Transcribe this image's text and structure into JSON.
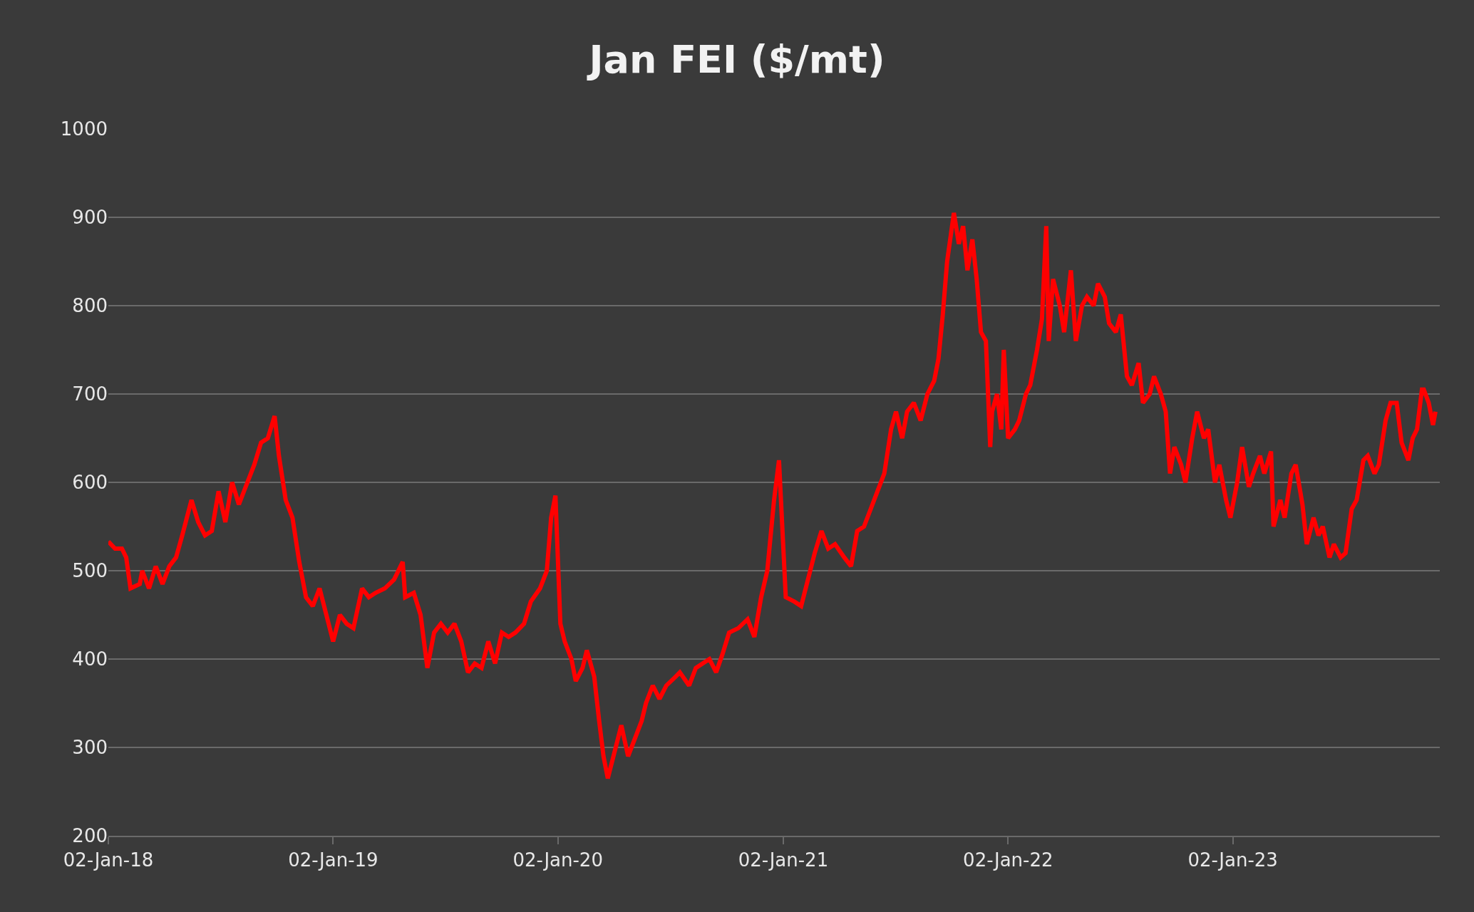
{
  "chart_data": {
    "type": "line",
    "title": "Jan FEI ($/mt)",
    "x": [
      "2018-01-02",
      "2018-01-13",
      "2018-01-24",
      "2018-01-31",
      "2018-02-07",
      "2018-02-22",
      "2018-02-26",
      "2018-03-09",
      "2018-03-20",
      "2018-03-31",
      "2018-04-11",
      "2018-04-22",
      "2018-05-02",
      "2018-05-17",
      "2018-05-28",
      "2018-06-08",
      "2018-06-19",
      "2018-06-30",
      "2018-07-11",
      "2018-07-22",
      "2018-08-02",
      "2018-08-13",
      "2018-08-27",
      "2018-09-07",
      "2018-09-18",
      "2018-09-29",
      "2018-10-06",
      "2018-10-17",
      "2018-10-28",
      "2018-11-08",
      "2018-11-19",
      "2018-11-30",
      "2018-12-11",
      "2018-12-22",
      "2019-01-02",
      "2019-01-13",
      "2019-01-24",
      "2019-02-04",
      "2019-02-18",
      "2019-03-01",
      "2019-03-12",
      "2019-03-27",
      "2019-04-11",
      "2019-04-25",
      "2019-04-29",
      "2019-05-13",
      "2019-05-24",
      "2019-06-04",
      "2019-06-15",
      "2019-06-26",
      "2019-07-07",
      "2019-07-18",
      "2019-07-29",
      "2019-08-09",
      "2019-08-20",
      "2019-08-31",
      "2019-09-11",
      "2019-09-22",
      "2019-10-03",
      "2019-10-14",
      "2019-10-25",
      "2019-11-08",
      "2019-11-19",
      "2019-12-04",
      "2019-12-15",
      "2019-12-22",
      "2019-12-29",
      "2020-01-06",
      "2020-01-13",
      "2020-01-24",
      "2020-01-31",
      "2020-02-11",
      "2020-02-18",
      "2020-03-01",
      "2020-03-09",
      "2020-03-16",
      "2020-03-23",
      "2020-04-03",
      "2020-04-14",
      "2020-04-25",
      "2020-05-06",
      "2020-05-17",
      "2020-05-24",
      "2020-06-04",
      "2020-06-15",
      "2020-06-26",
      "2020-07-11",
      "2020-07-18",
      "2020-08-02",
      "2020-08-13",
      "2020-08-24",
      "2020-09-04",
      "2020-09-15",
      "2020-09-25",
      "2020-10-06",
      "2020-10-21",
      "2020-11-05",
      "2020-11-16",
      "2020-11-27",
      "2020-12-07",
      "2020-12-18",
      "2020-12-26",
      "2021-01-06",
      "2021-01-20",
      "2021-01-31",
      "2021-02-11",
      "2021-02-22",
      "2021-03-05",
      "2021-03-16",
      "2021-03-27",
      "2021-04-11",
      "2021-04-22",
      "2021-05-02",
      "2021-05-13",
      "2021-05-24",
      "2021-06-04",
      "2021-06-15",
      "2021-06-26",
      "2021-07-04",
      "2021-07-14",
      "2021-07-22",
      "2021-08-02",
      "2021-08-13",
      "2021-08-24",
      "2021-09-04",
      "2021-09-11",
      "2021-09-18",
      "2021-09-25",
      "2021-10-06",
      "2021-10-14",
      "2021-10-21",
      "2021-10-28",
      "2021-11-05",
      "2021-11-12",
      "2021-11-19",
      "2021-11-27",
      "2021-12-04",
      "2021-12-07",
      "2021-12-15",
      "2021-12-22",
      "2021-12-26",
      "2022-01-02",
      "2022-01-13",
      "2022-01-20",
      "2022-01-31",
      "2022-02-07",
      "2022-02-18",
      "2022-02-26",
      "2022-03-05",
      "2022-03-09",
      "2022-03-16",
      "2022-03-27",
      "2022-04-03",
      "2022-04-14",
      "2022-04-22",
      "2022-05-02",
      "2022-05-10",
      "2022-05-21",
      "2022-05-28",
      "2022-06-08",
      "2022-06-15",
      "2022-06-26",
      "2022-07-04",
      "2022-07-14",
      "2022-07-22",
      "2022-08-02",
      "2022-08-09",
      "2022-08-20",
      "2022-08-27",
      "2022-09-07",
      "2022-09-15",
      "2022-09-22",
      "2022-09-29",
      "2022-10-10",
      "2022-10-17",
      "2022-10-28",
      "2022-11-05",
      "2022-11-16",
      "2022-11-23",
      "2022-12-04",
      "2022-12-11",
      "2022-12-22",
      "2022-12-29",
      "2023-01-09",
      "2023-01-17",
      "2023-01-28",
      "2023-02-04",
      "2023-02-15",
      "2023-02-22",
      "2023-03-05",
      "2023-03-09",
      "2023-03-20",
      "2023-03-27",
      "2023-04-07",
      "2023-04-14",
      "2023-04-25",
      "2023-05-02",
      "2023-05-13",
      "2023-05-21",
      "2023-05-28",
      "2023-06-08",
      "2023-06-15",
      "2023-06-26",
      "2023-07-04",
      "2023-07-14",
      "2023-07-22",
      "2023-08-02",
      "2023-08-09",
      "2023-08-20",
      "2023-08-27",
      "2023-09-07",
      "2023-09-15",
      "2023-09-25",
      "2023-10-03",
      "2023-10-14",
      "2023-10-21",
      "2023-10-28",
      "2023-11-05",
      "2023-11-08",
      "2023-11-16",
      "2023-11-23",
      "2023-11-27"
    ],
    "series": [
      {
        "color": "#ff0000",
        "values": [
          533,
          525,
          525,
          515,
          480,
          485,
          500,
          480,
          505,
          485,
          505,
          515,
          540,
          580,
          555,
          540,
          545,
          590,
          555,
          600,
          575,
          595,
          620,
          645,
          650,
          675,
          630,
          580,
          560,
          510,
          470,
          460,
          480,
          450,
          420,
          450,
          440,
          435,
          480,
          470,
          475,
          480,
          490,
          510,
          470,
          475,
          450,
          390,
          430,
          440,
          430,
          440,
          420,
          385,
          395,
          390,
          420,
          395,
          430,
          425,
          430,
          440,
          465,
          480,
          500,
          560,
          585,
          440,
          420,
          400,
          375,
          390,
          410,
          380,
          330,
          290,
          265,
          295,
          325,
          290,
          310,
          330,
          350,
          370,
          355,
          370,
          380,
          385,
          370,
          390,
          395,
          400,
          385,
          405,
          430,
          435,
          445,
          425,
          470,
          500,
          580,
          625,
          470,
          465,
          460,
          490,
          520,
          545,
          525,
          530,
          515,
          505,
          545,
          550,
          570,
          590,
          610,
          660,
          680,
          650,
          680,
          690,
          670,
          700,
          715,
          740,
          790,
          850,
          905,
          870,
          890,
          840,
          875,
          830,
          770,
          760,
          640,
          680,
          700,
          660,
          750,
          650,
          660,
          670,
          700,
          710,
          750,
          785,
          890,
          760,
          830,
          800,
          770,
          840,
          760,
          800,
          810,
          800,
          825,
          810,
          780,
          770,
          790,
          720,
          710,
          735,
          690,
          700,
          720,
          700,
          680,
          610,
          640,
          620,
          600,
          650,
          680,
          650,
          660,
          600,
          620,
          580,
          560,
          600,
          640,
          595,
          610,
          630,
          610,
          635,
          550,
          580,
          560,
          610,
          620,
          575,
          530,
          560,
          540,
          550,
          515,
          530,
          515,
          520,
          570,
          580,
          625,
          630,
          610,
          620,
          670,
          690,
          690,
          645,
          625,
          650,
          660,
          705,
          705,
          690,
          665,
          680
        ]
      }
    ],
    "xlim": [
      "2018-01-02",
      "2023-12-04"
    ],
    "xticks": [
      {
        "value": "2018-01-02",
        "label": "02-Jan-18"
      },
      {
        "value": "2019-01-02",
        "label": "02-Jan-19"
      },
      {
        "value": "2020-01-02",
        "label": "02-Jan-20"
      },
      {
        "value": "2021-01-02",
        "label": "02-Jan-21"
      },
      {
        "value": "2022-01-02",
        "label": "02-Jan-22"
      },
      {
        "value": "2023-01-02",
        "label": "02-Jan-23"
      }
    ],
    "ylim": [
      200,
      1000
    ],
    "yticks": [
      200,
      300,
      400,
      500,
      600,
      700,
      800,
      900,
      1000
    ],
    "grid": "y",
    "marker": "none",
    "line_style": "solid"
  }
}
